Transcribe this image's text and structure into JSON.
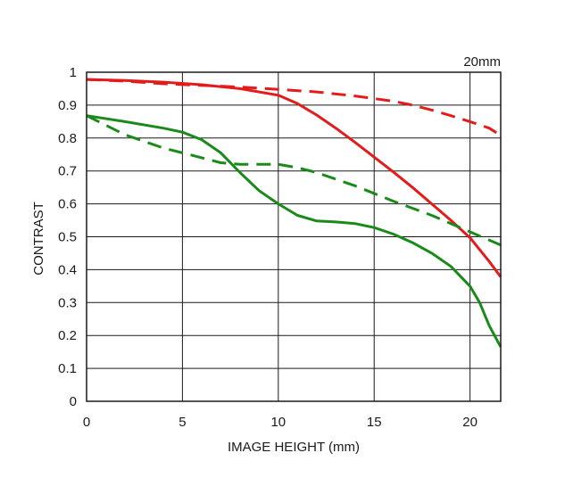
{
  "chart_data": {
    "type": "line",
    "annotation": "20mm",
    "xlabel": "IMAGE HEIGHT (mm)",
    "ylabel": "CONTRAST",
    "xlim": [
      0,
      21.6
    ],
    "ylim": [
      0,
      1
    ],
    "xticks": [
      0,
      5,
      10,
      15,
      20
    ],
    "yticks": [
      0,
      0.1,
      0.2,
      0.3,
      0.4,
      0.5,
      0.6,
      0.7,
      0.8,
      0.9,
      1
    ],
    "grid": true,
    "legend": "none",
    "series": [
      {
        "color": "#e31b1b",
        "dash": false,
        "x": [
          0,
          2,
          4,
          6,
          8,
          10,
          11,
          12,
          13,
          14,
          15,
          16,
          17,
          18,
          19,
          20,
          21,
          21.6
        ],
        "y": [
          0.978,
          0.975,
          0.97,
          0.962,
          0.95,
          0.93,
          0.905,
          0.87,
          0.83,
          0.787,
          0.742,
          0.697,
          0.65,
          0.6,
          0.55,
          0.497,
          0.425,
          0.378
        ]
      },
      {
        "color": "#e31b1b",
        "dash": true,
        "x": [
          0,
          2,
          4,
          6,
          8,
          10,
          12,
          14,
          16,
          17,
          18,
          19,
          20,
          21,
          21.6
        ],
        "y": [
          0.978,
          0.973,
          0.965,
          0.96,
          0.955,
          0.948,
          0.94,
          0.928,
          0.912,
          0.9,
          0.885,
          0.868,
          0.85,
          0.83,
          0.808
        ]
      },
      {
        "color": "#1a8a1a",
        "dash": false,
        "x": [
          0,
          2,
          4,
          5,
          6,
          7,
          8,
          9,
          10,
          11,
          12,
          13,
          14,
          15,
          16,
          17,
          18,
          19,
          20,
          20.5,
          21,
          21.6
        ],
        "y": [
          0.868,
          0.85,
          0.83,
          0.818,
          0.795,
          0.755,
          0.695,
          0.64,
          0.6,
          0.565,
          0.548,
          0.545,
          0.54,
          0.528,
          0.508,
          0.482,
          0.45,
          0.41,
          0.35,
          0.3,
          0.23,
          0.165
        ]
      },
      {
        "color": "#1a8a1a",
        "dash": true,
        "x": [
          0,
          2,
          4,
          6,
          7,
          8,
          9,
          10,
          11,
          12,
          14,
          16,
          18,
          20,
          21,
          21.6
        ],
        "y": [
          0.868,
          0.81,
          0.77,
          0.74,
          0.725,
          0.72,
          0.72,
          0.72,
          0.71,
          0.695,
          0.655,
          0.608,
          0.565,
          0.515,
          0.49,
          0.475
        ]
      }
    ]
  }
}
